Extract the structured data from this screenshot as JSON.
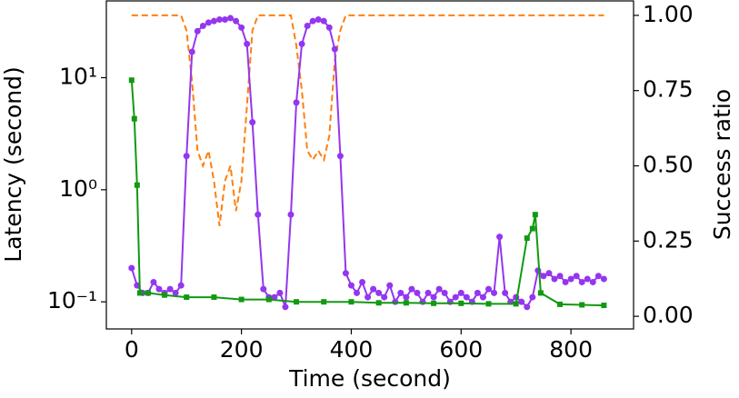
{
  "chart_data": {
    "type": "line",
    "x_label": "Time (second)",
    "y_label": "Latency (second)",
    "y2_label": "Success ratio",
    "xlim": [
      -46,
      914
    ],
    "xticks": [
      0,
      200,
      400,
      600,
      800
    ],
    "ylim": [
      0.0573,
      48.4
    ],
    "ylog": true,
    "yticks": [
      {
        "value": 0.1,
        "label": "10⁻¹"
      },
      {
        "value": 1,
        "label": "10⁰"
      },
      {
        "value": 10,
        "label": "10¹"
      }
    ],
    "y2lim": [
      -0.042,
      1.048
    ],
    "y2ticks": [
      {
        "value": 0,
        "label": "0.00"
      },
      {
        "value": 0.25,
        "label": "0.25"
      },
      {
        "value": 0.5,
        "label": "0.50"
      },
      {
        "value": 0.75,
        "label": "0.75"
      },
      {
        "value": 1,
        "label": "1.00"
      }
    ],
    "series": [
      {
        "color": "#9436f0",
        "marker": "circle",
        "dash": false,
        "x": [
          0,
          10,
          20,
          30,
          40,
          50,
          60,
          70,
          80,
          90,
          100,
          110,
          120,
          130,
          140,
          150,
          160,
          170,
          180,
          190,
          200,
          210,
          220,
          230,
          240,
          250,
          260,
          270,
          280,
          290,
          300,
          310,
          320,
          330,
          340,
          350,
          360,
          370,
          380,
          390,
          400,
          410,
          420,
          430,
          440,
          450,
          460,
          470,
          480,
          490,
          500,
          510,
          520,
          530,
          540,
          550,
          560,
          570,
          580,
          590,
          600,
          610,
          620,
          630,
          640,
          650,
          660,
          670,
          680,
          690,
          700,
          710,
          720,
          730,
          740,
          750,
          760,
          770,
          780,
          790,
          800,
          810,
          820,
          830,
          840,
          850,
          860
        ],
        "values": [
          0.2,
          0.14,
          0.12,
          0.12,
          0.15,
          0.13,
          0.12,
          0.13,
          0.12,
          0.14,
          2.0,
          17,
          26,
          29,
          31,
          32,
          33,
          33,
          34,
          32,
          28,
          20,
          4,
          0.6,
          0.13,
          0.11,
          0.11,
          0.12,
          0.09,
          0.6,
          6,
          20,
          29,
          32,
          33,
          32,
          28,
          18,
          2,
          0.18,
          0.14,
          0.12,
          0.15,
          0.11,
          0.13,
          0.12,
          0.11,
          0.14,
          0.1,
          0.12,
          0.11,
          0.13,
          0.12,
          0.1,
          0.12,
          0.11,
          0.13,
          0.12,
          0.1,
          0.11,
          0.12,
          0.11,
          0.1,
          0.12,
          0.11,
          0.13,
          0.12,
          0.38,
          0.12,
          0.1,
          0.11,
          0.1,
          0.09,
          0.11,
          0.19,
          0.17,
          0.18,
          0.16,
          0.17,
          0.15,
          0.16,
          0.17,
          0.15,
          0.16,
          0.15,
          0.17,
          0.16
        ]
      },
      {
        "color": "#119911",
        "marker": "square",
        "dash": false,
        "x": [
          0,
          5,
          10,
          15,
          30,
          60,
          100,
          150,
          200,
          250,
          300,
          350,
          400,
          450,
          500,
          550,
          600,
          650,
          700,
          720,
          730,
          735,
          745,
          780,
          820,
          860
        ],
        "values": [
          9.5,
          4.3,
          1.1,
          0.12,
          0.12,
          0.115,
          0.11,
          0.11,
          0.105,
          0.105,
          0.1,
          0.1,
          0.1,
          0.098,
          0.098,
          0.097,
          0.097,
          0.096,
          0.096,
          0.37,
          0.45,
          0.6,
          0.12,
          0.095,
          0.094,
          0.093
        ]
      },
      {
        "color": "#ff7f0e",
        "marker": "none",
        "dash": true,
        "axis": "y2",
        "x": [
          0,
          90,
          100,
          110,
          120,
          130,
          140,
          150,
          160,
          170,
          180,
          190,
          200,
          210,
          220,
          230,
          290,
          300,
          310,
          320,
          330,
          340,
          350,
          360,
          370,
          380,
          390,
          860
        ],
        "values": [
          1,
          1,
          0.95,
          0.78,
          0.55,
          0.5,
          0.55,
          0.45,
          0.3,
          0.45,
          0.5,
          0.35,
          0.45,
          0.7,
          0.95,
          1,
          1,
          0.9,
          0.75,
          0.55,
          0.52,
          0.55,
          0.52,
          0.6,
          0.85,
          0.95,
          1,
          1
        ]
      }
    ]
  }
}
